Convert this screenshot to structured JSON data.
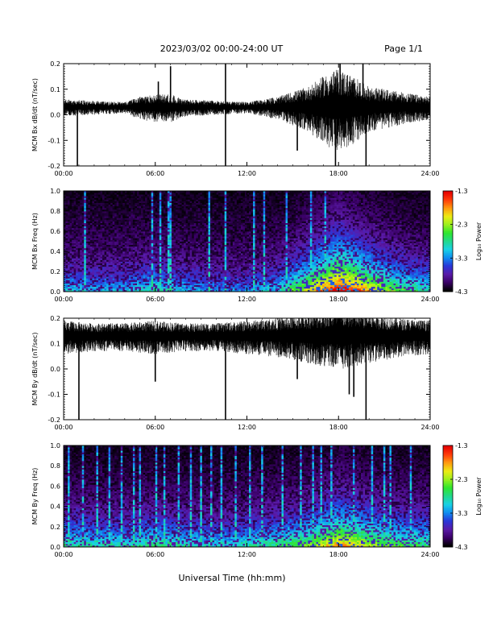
{
  "header": {
    "title": "2023/03/02  00:00-24:00 UT",
    "page": "Page 1/1"
  },
  "x_axis": {
    "ticks": [
      "00:00",
      "06:00",
      "12:00",
      "18:00",
      "24:00"
    ],
    "label": "Universal Time (hh:mm)",
    "range_hours": [
      0,
      24
    ]
  },
  "colorbar": {
    "label": "Log₁₀ Power",
    "ticks": [
      "-1.3",
      "-2.3",
      "-3.3",
      "-4.3"
    ],
    "range": [
      -4.3,
      -1.3
    ],
    "colors": [
      "#000000",
      "#3a0066",
      "#5a1aa8",
      "#2a36d8",
      "#0f8cf0",
      "#19d2e6",
      "#22d98c",
      "#2ee62e",
      "#9bf01e",
      "#ecec14",
      "#ff9b0f",
      "#ff3c0a",
      "#e60000"
    ]
  },
  "chart_data": [
    {
      "type": "line",
      "ylabel": "MCM Bx dB/dt (nT/sec)",
      "ylim": [
        -0.2,
        0.2
      ],
      "yticks": [
        "0.2",
        "0.1",
        "0.0",
        "-0.1",
        "-0.2"
      ],
      "baseline": 0.03,
      "envelope": {
        "x_hours": [
          0,
          2,
          4,
          5,
          6,
          7,
          8,
          10,
          12,
          14,
          15,
          16,
          17,
          18,
          19,
          20,
          21,
          22,
          24
        ],
        "amplitude": [
          0.03,
          0.025,
          0.02,
          0.04,
          0.05,
          0.05,
          0.03,
          0.025,
          0.02,
          0.04,
          0.06,
          0.08,
          0.12,
          0.15,
          0.12,
          0.08,
          0.07,
          0.06,
          0.04
        ]
      },
      "spikes": [
        {
          "x": 0.9,
          "y": -0.2
        },
        {
          "x": 6.2,
          "y": 0.13
        },
        {
          "x": 7.0,
          "y": 0.19
        },
        {
          "x": 10.6,
          "y": -0.2
        },
        {
          "x": 10.6,
          "y": 0.2
        },
        {
          "x": 15.3,
          "y": -0.14
        },
        {
          "x": 17.8,
          "y": -0.2
        },
        {
          "x": 18.1,
          "y": 0.2
        },
        {
          "x": 19.8,
          "y": -0.2
        },
        {
          "x": 19.6,
          "y": 0.2
        }
      ],
      "grid": false
    },
    {
      "type": "heatmap",
      "ylabel": "MCM Bx Freq (Hz)",
      "ylim": [
        0.0,
        1.0
      ],
      "yticks": [
        "1.0",
        "0.8",
        "0.6",
        "0.4",
        "0.2",
        "0.0"
      ],
      "value_range": [
        -4.3,
        -1.3
      ],
      "time_bins": 180,
      "freq_bins": 60,
      "activity": {
        "x_hours": [
          0,
          2,
          4,
          6,
          8,
          10,
          12,
          14,
          15,
          16,
          17,
          18,
          19,
          20,
          21,
          22,
          24
        ],
        "level": [
          0.35,
          0.3,
          0.3,
          0.4,
          0.3,
          0.25,
          0.25,
          0.35,
          0.5,
          0.65,
          0.8,
          0.95,
          0.85,
          0.7,
          0.6,
          0.5,
          0.4
        ]
      },
      "bursts_hours": [
        1.3,
        5.8,
        6.3,
        6.8,
        7.0,
        9.5,
        10.6,
        12.5,
        13.1,
        14.6,
        16.2,
        17.1
      ]
    },
    {
      "type": "line",
      "ylabel": "MCM By dB/dt (nT/sec)",
      "ylim": [
        -0.2,
        0.2
      ],
      "yticks": [
        "0.2",
        "0.1",
        "0.0",
        "-0.1",
        "-0.2"
      ],
      "baseline": 0.13,
      "envelope": {
        "x_hours": [
          0,
          2,
          4,
          6,
          8,
          10,
          12,
          14,
          16,
          17,
          18,
          19,
          20,
          21,
          22,
          24
        ],
        "amplitude": [
          0.06,
          0.05,
          0.05,
          0.06,
          0.05,
          0.05,
          0.06,
          0.07,
          0.09,
          0.1,
          0.11,
          0.1,
          0.09,
          0.08,
          0.07,
          0.06
        ]
      },
      "spikes": [
        {
          "x": 1.0,
          "y": -0.2
        },
        {
          "x": 6.0,
          "y": -0.05
        },
        {
          "x": 10.6,
          "y": -0.2
        },
        {
          "x": 15.3,
          "y": -0.04
        },
        {
          "x": 18.7,
          "y": -0.1
        },
        {
          "x": 19.0,
          "y": -0.11
        },
        {
          "x": 19.8,
          "y": -0.2
        }
      ],
      "grid": false
    },
    {
      "type": "heatmap",
      "ylabel": "MCM By Freq (Hz)",
      "ylim": [
        0.0,
        1.0
      ],
      "yticks": [
        "1.0",
        "0.8",
        "0.6",
        "0.4",
        "0.2",
        "0.0"
      ],
      "value_range": [
        -4.3,
        -1.3
      ],
      "time_bins": 180,
      "freq_bins": 60,
      "activity": {
        "x_hours": [
          0,
          2,
          4,
          6,
          8,
          10,
          12,
          14,
          16,
          17,
          18,
          19,
          20,
          21,
          22,
          24
        ],
        "level": [
          0.45,
          0.4,
          0.4,
          0.45,
          0.4,
          0.35,
          0.4,
          0.45,
          0.55,
          0.65,
          0.75,
          0.7,
          0.6,
          0.55,
          0.5,
          0.45
        ]
      },
      "bursts_hours": [
        0.3,
        1.2,
        2.2,
        3.0,
        3.7,
        4.5,
        5.0,
        6.0,
        6.6,
        7.5,
        8.3,
        9.0,
        9.6,
        10.3,
        11.3,
        12.2,
        13.0,
        14.4,
        15.6,
        16.3,
        16.9,
        17.5,
        19.0,
        20.2,
        21.0,
        21.5,
        22.8
      ]
    }
  ]
}
